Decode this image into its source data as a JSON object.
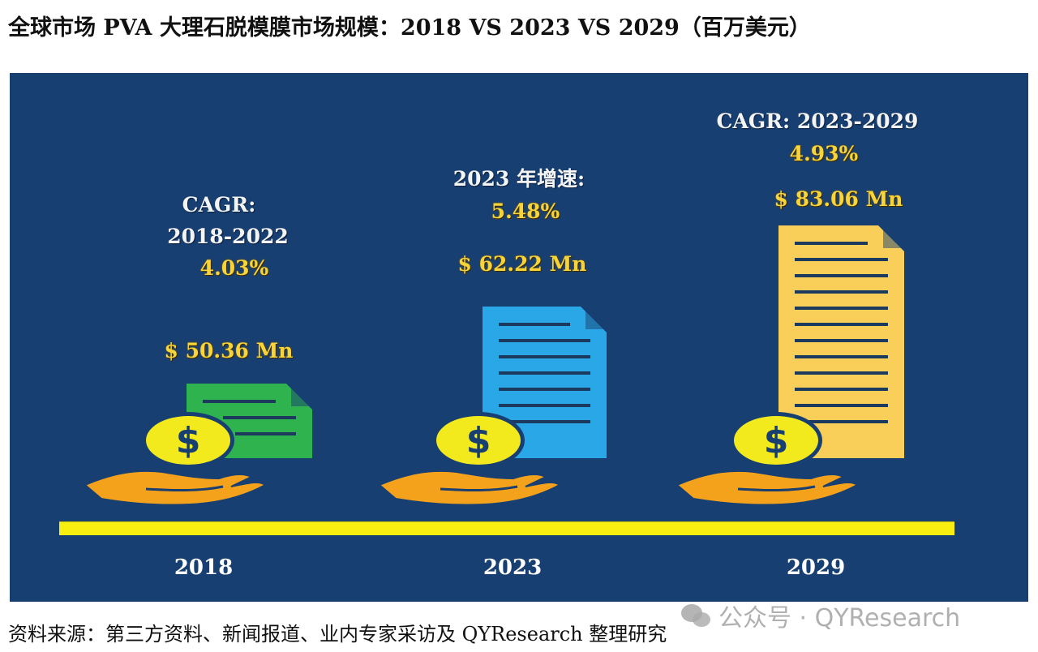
{
  "title": "全球市场 PVA 大理石脱模膜市场规模：2018 VS 2023 VS 2029（百万美元）",
  "chart_data": {
    "type": "infographic-bar",
    "title": "全球市场 PVA 大理石脱模膜市场规模：2018 VS 2023 VS 2029（百万美元）",
    "categories": [
      "2018",
      "2023",
      "2029"
    ],
    "values": [
      50.36,
      62.22,
      83.06
    ],
    "value_labels": [
      "$ 50.36 Mn",
      "$ 62.22 Mn",
      "$ 83.06 Mn"
    ],
    "annotations": [
      {
        "heading": "CAGR:",
        "sub": "2018-2022",
        "value": "4.03%"
      },
      {
        "heading": "2023 年增速:",
        "sub": "",
        "value": "5.48%"
      },
      {
        "heading": "CAGR: 2023-2029",
        "sub": "",
        "value": "4.93%"
      }
    ],
    "document_colors": [
      "#2eb34f",
      "#2aa7e6",
      "#f9cf5a"
    ],
    "colors": {
      "background": "#183f72",
      "baseline": "#f8ee10",
      "value_text": "#f6d43a",
      "coin": "#f3ea1e",
      "hand": "#f4a21c"
    }
  },
  "source": "资料来源：第三方资料、新闻报道、业内专家采访及 QYResearch 整理研究",
  "watermark": "公众号 · QYResearch"
}
